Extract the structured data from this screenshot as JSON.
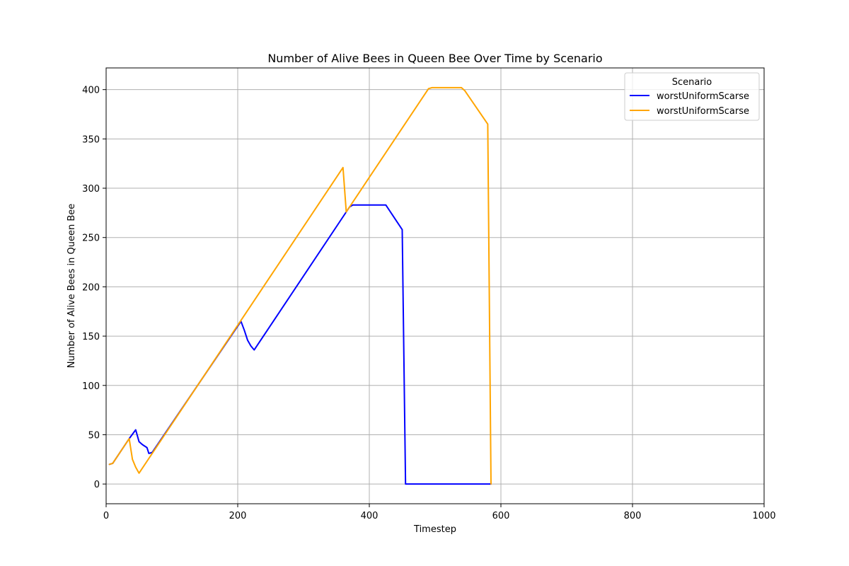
{
  "chart_data": {
    "type": "line",
    "title": "Number of Alive Bees in Queen Bee Over Time by Scenario",
    "xlabel": "Timestep",
    "ylabel": "Number of Alive Bees in Queen Bee",
    "xlim": [
      0,
      1000
    ],
    "ylim": [
      -20,
      422
    ],
    "x_ticks": [
      0,
      200,
      400,
      600,
      800,
      1000
    ],
    "y_ticks": [
      0,
      50,
      100,
      150,
      200,
      250,
      300,
      350,
      400
    ],
    "grid": true,
    "legend": {
      "title": "Scenario",
      "placement": "top-right"
    },
    "series": [
      {
        "name": "worstUniformScarse",
        "color": "#0000ff",
        "points": [
          [
            5,
            20
          ],
          [
            10,
            21
          ],
          [
            35,
            46
          ],
          [
            45,
            55
          ],
          [
            50,
            43
          ],
          [
            55,
            40
          ],
          [
            62,
            37
          ],
          [
            65,
            31
          ],
          [
            70,
            32
          ],
          [
            205,
            165
          ],
          [
            210,
            156
          ],
          [
            215,
            146
          ],
          [
            220,
            140
          ],
          [
            225,
            136
          ],
          [
            370,
            281
          ],
          [
            375,
            283
          ],
          [
            425,
            283
          ],
          [
            450,
            258
          ],
          [
            455,
            0
          ],
          [
            585,
            0
          ]
        ]
      },
      {
        "name": "worstUniformScarse",
        "color": "#ffa500",
        "points": [
          [
            5,
            20
          ],
          [
            10,
            21
          ],
          [
            35,
            46
          ],
          [
            40,
            25
          ],
          [
            45,
            17
          ],
          [
            50,
            11
          ],
          [
            360,
            321
          ],
          [
            365,
            276
          ],
          [
            490,
            401
          ],
          [
            495,
            402
          ],
          [
            540,
            402
          ],
          [
            545,
            399
          ],
          [
            580,
            365
          ],
          [
            585,
            0
          ]
        ]
      }
    ]
  }
}
